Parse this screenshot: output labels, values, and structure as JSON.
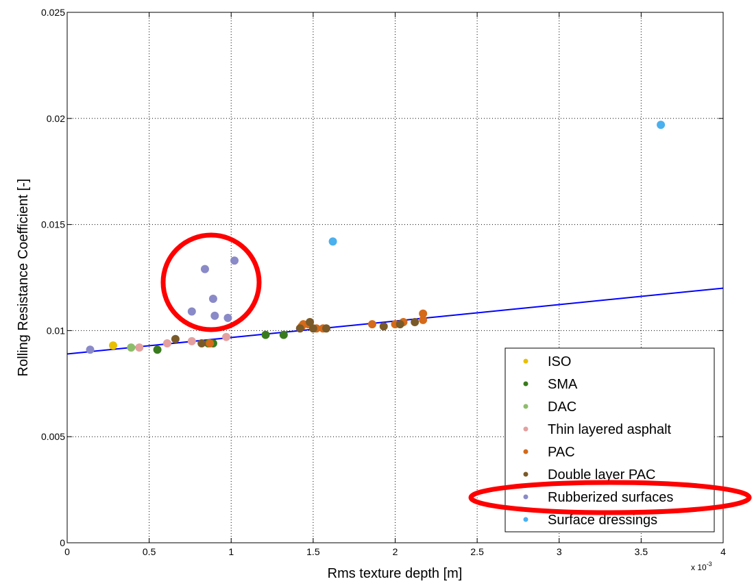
{
  "chart_data": {
    "type": "scatter",
    "xlabel": "Rms texture depth [m]",
    "ylabel": "Rolling Resistance Coefficient [-]",
    "x_multiplier_label": "x 10",
    "x_multiplier_exponent": "-3",
    "xlim": [
      0,
      4
    ],
    "ylim": [
      0,
      0.025
    ],
    "x_ticks": [
      0,
      0.5,
      1,
      1.5,
      2,
      2.5,
      3,
      3.5,
      4
    ],
    "x_tick_labels": [
      "0",
      "0.5",
      "1",
      "1.5",
      "2",
      "2.5",
      "3",
      "3.5",
      "4"
    ],
    "y_ticks": [
      0,
      0.005,
      0.01,
      0.015,
      0.02,
      0.025
    ],
    "y_tick_labels": [
      "0",
      "0.005",
      "0.01",
      "0.015",
      "0.02",
      "0.025"
    ],
    "grid": true,
    "legend_position": "bottom-right",
    "series": [
      {
        "name": "ISO",
        "color": "#e8c000",
        "points": [
          [
            0.28,
            0.0093
          ]
        ]
      },
      {
        "name": "SMA",
        "color": "#3a7a1e",
        "points": [
          [
            0.55,
            0.0091
          ],
          [
            0.86,
            0.0094
          ],
          [
            0.89,
            0.0094
          ],
          [
            1.21,
            0.0098
          ],
          [
            1.32,
            0.0098
          ]
        ]
      },
      {
        "name": "DAC",
        "color": "#8dbd6a",
        "points": [
          [
            0.39,
            0.0092
          ]
        ]
      },
      {
        "name": "Thin layered asphalt",
        "color": "#e4a0a0",
        "points": [
          [
            0.44,
            0.0092
          ],
          [
            0.61,
            0.0094
          ],
          [
            0.76,
            0.0095
          ],
          [
            0.97,
            0.0097
          ]
        ]
      },
      {
        "name": "PAC",
        "color": "#d46a1a",
        "points": [
          [
            0.87,
            0.0094
          ],
          [
            1.43,
            0.0102
          ],
          [
            1.44,
            0.0103
          ],
          [
            1.47,
            0.0103
          ],
          [
            1.52,
            0.0101
          ],
          [
            1.56,
            0.0101
          ],
          [
            1.86,
            0.0103
          ],
          [
            2.0,
            0.0103
          ],
          [
            2.05,
            0.0104
          ],
          [
            2.17,
            0.0105
          ],
          [
            2.17,
            0.0108
          ]
        ]
      },
      {
        "name": "Double layer PAC",
        "color": "#7a5a28",
        "points": [
          [
            0.66,
            0.0096
          ],
          [
            0.82,
            0.0094
          ],
          [
            1.42,
            0.0101
          ],
          [
            1.48,
            0.0104
          ],
          [
            1.5,
            0.0101
          ],
          [
            1.58,
            0.0101
          ],
          [
            1.93,
            0.0102
          ],
          [
            2.03,
            0.0103
          ],
          [
            2.12,
            0.0104
          ]
        ]
      },
      {
        "name": "Rubberized surfaces",
        "color": "#8a8ac8",
        "points": [
          [
            0.14,
            0.0091
          ],
          [
            0.76,
            0.0109
          ],
          [
            0.84,
            0.0129
          ],
          [
            0.89,
            0.0115
          ],
          [
            0.9,
            0.0107
          ],
          [
            0.98,
            0.0106
          ],
          [
            1.02,
            0.0133
          ]
        ]
      },
      {
        "name": "Surface dressings",
        "color": "#4ab0ee",
        "points": [
          [
            1.62,
            0.0142
          ],
          [
            3.62,
            0.0197
          ]
        ]
      }
    ],
    "fit_line": {
      "color": "#0000ff",
      "x": [
        0,
        4
      ],
      "y": [
        0.0089,
        0.012
      ]
    },
    "highlight_color": "#ff0000"
  }
}
